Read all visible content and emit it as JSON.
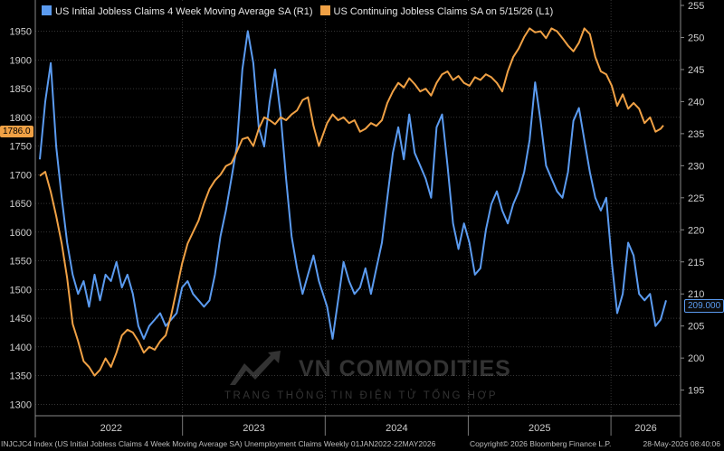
{
  "colors": {
    "claims4wk": "#5b9bf0",
    "continuing": "#f0a145",
    "background": "#000000",
    "grid": "#555555"
  },
  "legend": {
    "series1": "US Initial Jobless Claims 4 Week Moving Average SA  (R1)",
    "series2": "US Continuing Jobless Claims SA  on 5/15/26 (L1)"
  },
  "last_value_tags": {
    "left": "1786.0",
    "right": "209.000"
  },
  "footer": {
    "left": "INJCJC4 Index (US Initial Jobless Claims 4 Week Moving Average SA) Unemployment Claims Weekly 01JAN2022-22MAY2026",
    "center": "Copyright© 2026 Bloomberg Finance L.P.",
    "right": "28-May-2026 08:40:06"
  },
  "watermark": {
    "brand": "VN COMMODITIES",
    "tagline": "TRANG THÔNG TIN ĐIỆN TỬ TỔNG HỢP"
  },
  "chart_data": {
    "type": "line",
    "x_axis": {
      "labels": [
        "2022",
        "2023",
        "2024",
        "2025",
        "2026"
      ],
      "range": [
        "2022-01-01",
        "2026-05-22"
      ]
    },
    "left_axis": {
      "ticks": [
        "1950",
        "1900",
        "1850",
        "1800",
        "1750",
        "1700",
        "1650",
        "1600",
        "1550",
        "1500",
        "1450",
        "1400",
        "1350",
        "1300"
      ],
      "range": [
        1280,
        1995
      ]
    },
    "right_axis": {
      "ticks": [
        "255",
        "250",
        "245",
        "240",
        "235",
        "230",
        "225",
        "220",
        "215",
        "210",
        "205",
        "200",
        "195"
      ],
      "range": [
        191,
        255
      ]
    },
    "grid": true,
    "series": [
      {
        "name": "US Initial Jobless Claims 4 Week Moving Average SA  (R1)",
        "axis": "right",
        "points": [
          [
            "2022-01-01",
            231
          ],
          [
            "2022-01-15",
            240
          ],
          [
            "2022-01-29",
            246
          ],
          [
            "2022-02-12",
            233
          ],
          [
            "2022-02-26",
            225
          ],
          [
            "2022-03-12",
            218
          ],
          [
            "2022-03-26",
            213
          ],
          [
            "2022-04-09",
            210
          ],
          [
            "2022-04-23",
            212
          ],
          [
            "2022-05-07",
            208
          ],
          [
            "2022-05-21",
            213
          ],
          [
            "2022-06-04",
            209
          ],
          [
            "2022-06-18",
            213
          ],
          [
            "2022-07-02",
            212
          ],
          [
            "2022-07-16",
            215
          ],
          [
            "2022-07-30",
            211
          ],
          [
            "2022-08-13",
            213
          ],
          [
            "2022-08-27",
            210
          ],
          [
            "2022-09-10",
            205
          ],
          [
            "2022-09-24",
            203
          ],
          [
            "2022-10-08",
            205
          ],
          [
            "2022-10-22",
            206
          ],
          [
            "2022-11-05",
            207
          ],
          [
            "2022-11-19",
            205
          ],
          [
            "2022-12-03",
            206
          ],
          [
            "2022-12-17",
            207
          ],
          [
            "2022-12-31",
            211
          ],
          [
            "2023-01-14",
            212
          ],
          [
            "2023-01-28",
            210
          ],
          [
            "2023-02-11",
            209
          ],
          [
            "2023-02-25",
            208
          ],
          [
            "2023-03-11",
            209
          ],
          [
            "2023-03-25",
            213
          ],
          [
            "2023-04-08",
            219
          ],
          [
            "2023-04-22",
            223
          ],
          [
            "2023-05-06",
            228
          ],
          [
            "2023-05-20",
            233
          ],
          [
            "2023-06-03",
            245
          ],
          [
            "2023-06-17",
            251
          ],
          [
            "2023-07-01",
            246
          ],
          [
            "2023-07-15",
            236
          ],
          [
            "2023-07-29",
            233
          ],
          [
            "2023-08-12",
            240
          ],
          [
            "2023-08-26",
            245
          ],
          [
            "2023-09-09",
            238
          ],
          [
            "2023-09-23",
            228
          ],
          [
            "2023-10-07",
            219
          ],
          [
            "2023-10-21",
            214
          ],
          [
            "2023-11-04",
            210
          ],
          [
            "2023-11-18",
            213
          ],
          [
            "2023-12-02",
            216
          ],
          [
            "2023-12-16",
            212
          ],
          [
            "2024-01-06",
            208
          ],
          [
            "2024-01-20",
            203
          ],
          [
            "2024-02-03",
            209
          ],
          [
            "2024-02-17",
            215
          ],
          [
            "2024-03-02",
            212
          ],
          [
            "2024-03-16",
            210
          ],
          [
            "2024-03-30",
            211
          ],
          [
            "2024-04-13",
            214
          ],
          [
            "2024-04-27",
            210
          ],
          [
            "2024-05-11",
            214
          ],
          [
            "2024-05-25",
            218
          ],
          [
            "2024-06-08",
            225
          ],
          [
            "2024-06-22",
            232
          ],
          [
            "2024-07-06",
            236
          ],
          [
            "2024-07-20",
            231
          ],
          [
            "2024-08-03",
            238
          ],
          [
            "2024-08-17",
            232
          ],
          [
            "2024-08-31",
            230
          ],
          [
            "2024-09-14",
            228
          ],
          [
            "2024-09-28",
            225
          ],
          [
            "2024-10-12",
            236
          ],
          [
            "2024-10-26",
            238
          ],
          [
            "2024-11-09",
            230
          ],
          [
            "2024-11-23",
            221
          ],
          [
            "2024-12-07",
            217
          ],
          [
            "2024-12-21",
            221
          ],
          [
            "2025-01-04",
            218
          ],
          [
            "2025-01-18",
            213
          ],
          [
            "2025-02-01",
            214
          ],
          [
            "2025-02-15",
            220
          ],
          [
            "2025-03-01",
            224
          ],
          [
            "2025-03-15",
            226
          ],
          [
            "2025-03-29",
            223
          ],
          [
            "2025-04-12",
            221
          ],
          [
            "2025-04-26",
            224
          ],
          [
            "2025-05-10",
            226
          ],
          [
            "2025-05-24",
            229
          ],
          [
            "2025-06-07",
            234
          ],
          [
            "2025-06-21",
            243
          ],
          [
            "2025-07-05",
            237
          ],
          [
            "2025-07-19",
            230
          ],
          [
            "2025-08-02",
            228
          ],
          [
            "2025-08-16",
            226
          ],
          [
            "2025-08-30",
            225
          ],
          [
            "2025-09-13",
            229
          ],
          [
            "2025-09-27",
            237
          ],
          [
            "2025-10-11",
            239
          ],
          [
            "2025-10-25",
            234
          ],
          [
            "2025-11-08",
            229
          ],
          [
            "2025-11-22",
            225
          ],
          [
            "2025-12-06",
            223
          ],
          [
            "2025-12-20",
            225
          ],
          [
            "2026-01-03",
            215
          ],
          [
            "2026-01-17",
            207
          ],
          [
            "2026-01-31",
            210
          ],
          [
            "2026-02-14",
            218
          ],
          [
            "2026-02-28",
            216
          ],
          [
            "2026-03-14",
            210
          ],
          [
            "2026-03-28",
            209
          ],
          [
            "2026-04-11",
            210
          ],
          [
            "2026-04-25",
            205
          ],
          [
            "2026-05-08",
            206
          ],
          [
            "2026-05-22",
            209
          ]
        ]
      },
      {
        "name": "US Continuing Jobless Claims SA  on 5/15/26 (L1)",
        "axis": "left",
        "points": [
          [
            "2022-01-01",
            1698
          ],
          [
            "2022-01-15",
            1705
          ],
          [
            "2022-01-29",
            1670
          ],
          [
            "2022-02-12",
            1628
          ],
          [
            "2022-02-26",
            1580
          ],
          [
            "2022-03-12",
            1520
          ],
          [
            "2022-03-26",
            1440
          ],
          [
            "2022-04-09",
            1410
          ],
          [
            "2022-04-23",
            1375
          ],
          [
            "2022-05-07",
            1365
          ],
          [
            "2022-05-21",
            1350
          ],
          [
            "2022-06-04",
            1360
          ],
          [
            "2022-06-18",
            1380
          ],
          [
            "2022-07-02",
            1365
          ],
          [
            "2022-07-16",
            1390
          ],
          [
            "2022-07-30",
            1420
          ],
          [
            "2022-08-13",
            1430
          ],
          [
            "2022-08-27",
            1425
          ],
          [
            "2022-09-10",
            1410
          ],
          [
            "2022-09-24",
            1390
          ],
          [
            "2022-10-08",
            1400
          ],
          [
            "2022-10-22",
            1395
          ],
          [
            "2022-11-05",
            1410
          ],
          [
            "2022-11-19",
            1420
          ],
          [
            "2022-12-03",
            1455
          ],
          [
            "2022-12-17",
            1500
          ],
          [
            "2022-12-31",
            1545
          ],
          [
            "2023-01-14",
            1580
          ],
          [
            "2023-01-28",
            1600
          ],
          [
            "2023-02-11",
            1620
          ],
          [
            "2023-02-25",
            1650
          ],
          [
            "2023-03-11",
            1675
          ],
          [
            "2023-03-25",
            1690
          ],
          [
            "2023-04-08",
            1700
          ],
          [
            "2023-04-22",
            1715
          ],
          [
            "2023-05-06",
            1720
          ],
          [
            "2023-05-20",
            1740
          ],
          [
            "2023-06-03",
            1762
          ],
          [
            "2023-06-17",
            1765
          ],
          [
            "2023-07-01",
            1750
          ],
          [
            "2023-07-15",
            1780
          ],
          [
            "2023-07-29",
            1800
          ],
          [
            "2023-08-12",
            1795
          ],
          [
            "2023-08-26",
            1788
          ],
          [
            "2023-09-09",
            1800
          ],
          [
            "2023-09-23",
            1795
          ],
          [
            "2023-10-07",
            1805
          ],
          [
            "2023-10-21",
            1812
          ],
          [
            "2023-11-04",
            1830
          ],
          [
            "2023-11-18",
            1835
          ],
          [
            "2023-12-02",
            1785
          ],
          [
            "2023-12-16",
            1750
          ],
          [
            "2024-01-06",
            1790
          ],
          [
            "2024-01-20",
            1805
          ],
          [
            "2024-02-03",
            1795
          ],
          [
            "2024-02-17",
            1800
          ],
          [
            "2024-03-02",
            1790
          ],
          [
            "2024-03-16",
            1795
          ],
          [
            "2024-03-30",
            1775
          ],
          [
            "2024-04-13",
            1780
          ],
          [
            "2024-04-27",
            1790
          ],
          [
            "2024-05-11",
            1785
          ],
          [
            "2024-05-25",
            1795
          ],
          [
            "2024-06-08",
            1825
          ],
          [
            "2024-06-22",
            1845
          ],
          [
            "2024-07-06",
            1860
          ],
          [
            "2024-07-20",
            1852
          ],
          [
            "2024-08-03",
            1868
          ],
          [
            "2024-08-17",
            1858
          ],
          [
            "2024-08-31",
            1845
          ],
          [
            "2024-09-14",
            1850
          ],
          [
            "2024-09-28",
            1838
          ],
          [
            "2024-10-12",
            1860
          ],
          [
            "2024-10-26",
            1875
          ],
          [
            "2024-11-09",
            1880
          ],
          [
            "2024-11-23",
            1865
          ],
          [
            "2024-12-07",
            1872
          ],
          [
            "2024-12-21",
            1860
          ],
          [
            "2025-01-04",
            1855
          ],
          [
            "2025-01-18",
            1870
          ],
          [
            "2025-02-01",
            1865
          ],
          [
            "2025-02-15",
            1875
          ],
          [
            "2025-03-01",
            1870
          ],
          [
            "2025-03-15",
            1860
          ],
          [
            "2025-03-29",
            1845
          ],
          [
            "2025-04-12",
            1880
          ],
          [
            "2025-04-26",
            1905
          ],
          [
            "2025-05-10",
            1920
          ],
          [
            "2025-05-24",
            1940
          ],
          [
            "2025-06-07",
            1955
          ],
          [
            "2025-06-21",
            1948
          ],
          [
            "2025-07-05",
            1950
          ],
          [
            "2025-07-19",
            1938
          ],
          [
            "2025-08-02",
            1955
          ],
          [
            "2025-08-16",
            1950
          ],
          [
            "2025-08-30",
            1938
          ],
          [
            "2025-09-13",
            1925
          ],
          [
            "2025-09-27",
            1915
          ],
          [
            "2025-10-11",
            1930
          ],
          [
            "2025-10-25",
            1955
          ],
          [
            "2025-11-08",
            1945
          ],
          [
            "2025-11-22",
            1905
          ],
          [
            "2025-12-06",
            1880
          ],
          [
            "2025-12-20",
            1875
          ],
          [
            "2026-01-03",
            1855
          ],
          [
            "2026-01-17",
            1820
          ],
          [
            "2026-01-31",
            1840
          ],
          [
            "2026-02-14",
            1815
          ],
          [
            "2026-02-28",
            1825
          ],
          [
            "2026-03-14",
            1815
          ],
          [
            "2026-03-28",
            1790
          ],
          [
            "2026-04-11",
            1800
          ],
          [
            "2026-04-25",
            1775
          ],
          [
            "2026-05-08",
            1780
          ],
          [
            "2026-05-15",
            1786
          ]
        ]
      }
    ]
  }
}
